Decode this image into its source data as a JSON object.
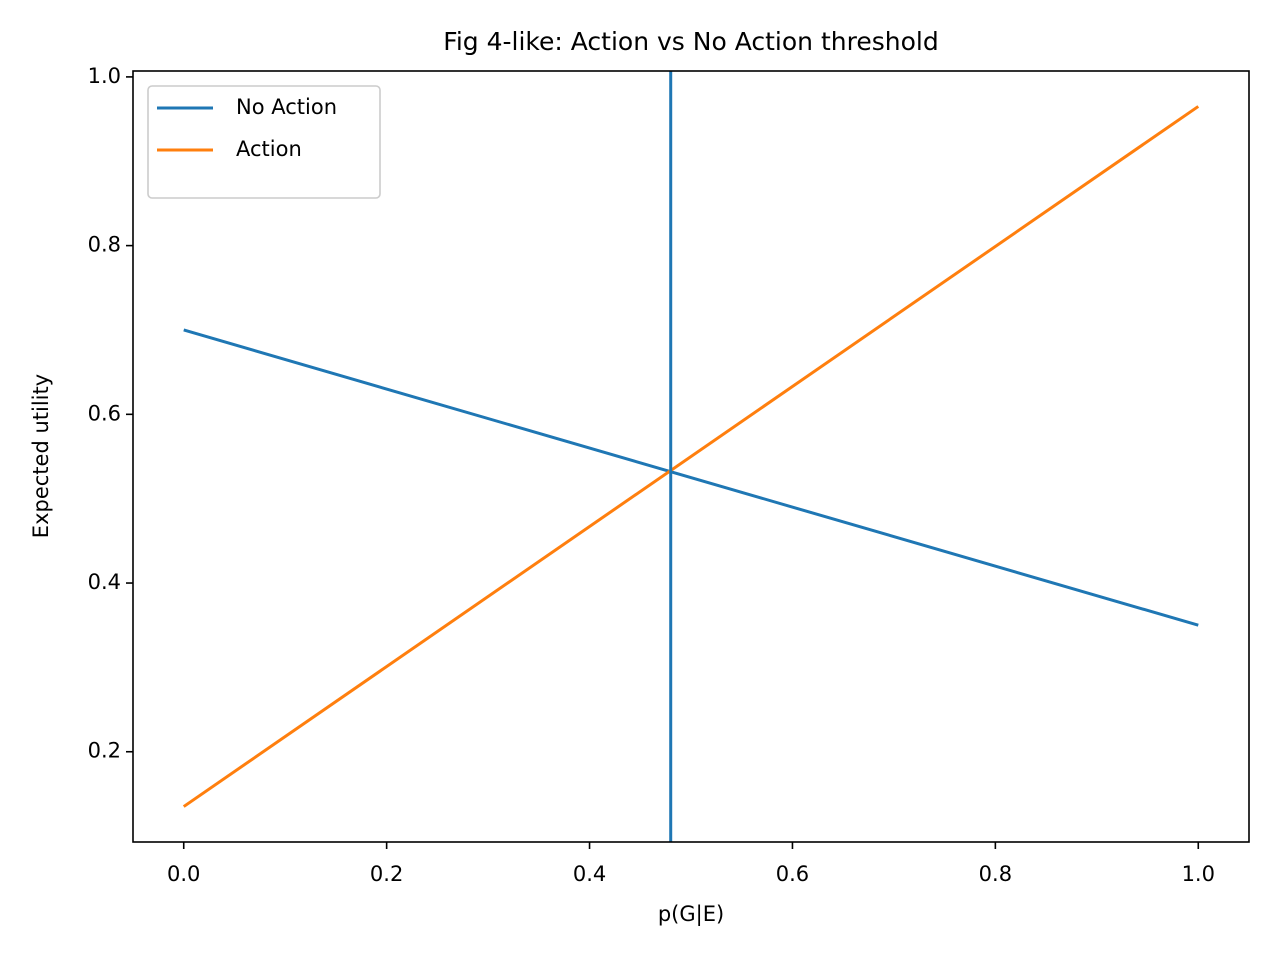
{
  "chart_data": {
    "type": "line",
    "title": "Fig 4-like: Action vs No Action threshold",
    "x_label": "p(G|E)",
    "y_label": "Expected utility",
    "x": [
      0,
      1
    ],
    "series": [
      {
        "name": "No Action",
        "color": "#1f77b4",
        "values": [
          0.7,
          0.35
        ]
      },
      {
        "name": "Action",
        "color": "#ff7f0e",
        "values": [
          0.135,
          0.965
        ]
      }
    ],
    "axvline": {
      "x": 0.48,
      "color": "#1f77b4"
    },
    "xlim": [
      -0.05,
      1.05
    ],
    "ylim": [
      0.093,
      1.007
    ],
    "xticks": [
      {
        "value": 0,
        "label": "0.0"
      },
      0.2,
      0.4,
      0.6,
      0.8,
      {
        "value": 1,
        "label": "1.0"
      }
    ],
    "yticks": [
      0.2,
      0.4,
      0.6,
      0.8,
      {
        "value": 1,
        "label": "1.0"
      }
    ],
    "legend": "upper left",
    "grid": false
  }
}
